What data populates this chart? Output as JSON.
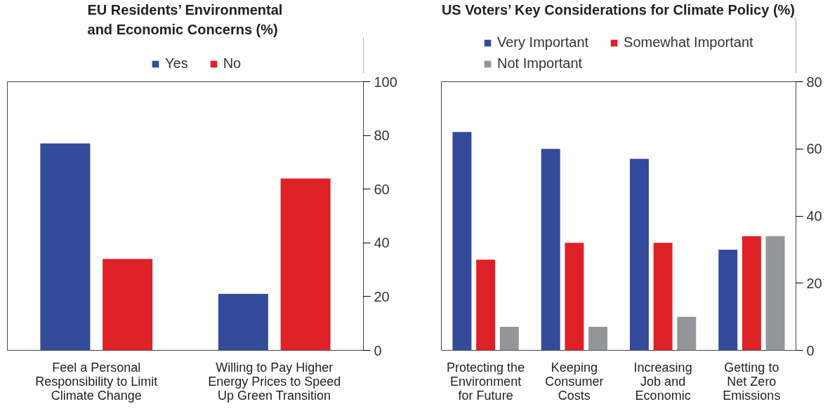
{
  "chart_data": [
    {
      "type": "bar",
      "title": "EU Residents’ Environmental\nand Economic Concerns (%)",
      "categories": [
        "Feel a Personal\nResponsibility to Limit\nClimate Change",
        "Willing to Pay Higher\nEnergy Prices to Speed\nUp Green Transition"
      ],
      "series": [
        {
          "name": "Yes",
          "color": "#344a9a",
          "values": [
            77,
            21
          ]
        },
        {
          "name": "No",
          "color": "#df2027",
          "values": [
            34,
            64
          ]
        }
      ],
      "ylim": [
        0,
        100
      ],
      "yticks": [
        0,
        20,
        40,
        60,
        80,
        100
      ],
      "grid": false,
      "legend": "top"
    },
    {
      "type": "bar",
      "title": "US Voters’ Key Considerations for Climate Policy (%)",
      "categories": [
        "Protecting the\nEnvironment\nfor Future",
        "Keeping\nConsumer\nCosts",
        "Increasing\nJob and\nEconomic",
        "Getting to\nNet Zero\nEmissions"
      ],
      "series": [
        {
          "name": "Very Important",
          "color": "#344a9a",
          "values": [
            65,
            60,
            57,
            30
          ]
        },
        {
          "name": "Somewhat Important",
          "color": "#df2027",
          "values": [
            27,
            32,
            32,
            34
          ]
        },
        {
          "name": "Not Important",
          "color": "#939598",
          "values": [
            7,
            7,
            10,
            34
          ]
        }
      ],
      "ylim": [
        0,
        80
      ],
      "yticks": [
        0,
        20,
        40,
        60,
        80
      ],
      "grid": false,
      "legend": "top"
    }
  ]
}
